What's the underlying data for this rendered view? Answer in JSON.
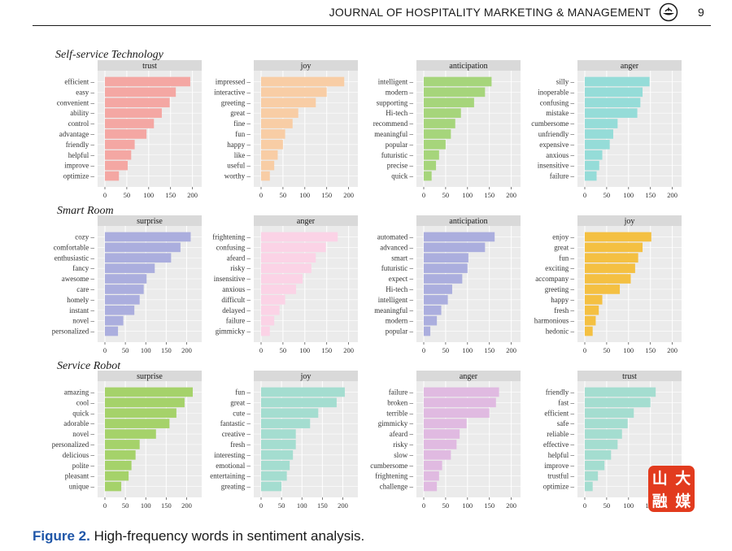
{
  "header": {
    "journal": "JOURNAL OF HOSPITALITY MARKETING & MANAGEMENT",
    "page": "9"
  },
  "rows": [
    {
      "title": "Self-service Technology"
    },
    {
      "title": "Smart Room"
    },
    {
      "title": "Service Robot"
    }
  ],
  "caption": {
    "label": "Figure 2.",
    "text": "High-frequency words in sentiment analysis."
  },
  "watermark": {
    "text": "山大融媒"
  },
  "chart_data": [
    {
      "type": "bar",
      "orientation": "horizontal",
      "group": "Self-service Technology",
      "title": "trust",
      "color": "#f4a7a3",
      "categories": [
        "efficient",
        "easy",
        "convenient",
        "ability",
        "control",
        "advantage",
        "friendly",
        "helpful",
        "improve",
        "optimize"
      ],
      "values": [
        195,
        162,
        148,
        130,
        112,
        95,
        68,
        60,
        52,
        32
      ],
      "xlim": [
        0,
        210
      ],
      "xticks": [
        0,
        50,
        100,
        150,
        200
      ]
    },
    {
      "type": "bar",
      "orientation": "horizontal",
      "group": "Self-service Technology",
      "title": "joy",
      "color": "#f8cda5",
      "categories": [
        "impressed",
        "interactive",
        "greeting",
        "great",
        "fine",
        "fun",
        "happy",
        "like",
        "useful",
        "worthy"
      ],
      "values": [
        190,
        150,
        125,
        85,
        72,
        55,
        50,
        38,
        30,
        20
      ],
      "xlim": [
        0,
        210
      ],
      "xticks": [
        0,
        50,
        100,
        150,
        200
      ]
    },
    {
      "type": "bar",
      "orientation": "horizontal",
      "group": "Self-service Technology",
      "title": "anticipation",
      "color": "#a6d57b",
      "categories": [
        "intelligent",
        "modern",
        "supporting",
        "Hi-tech",
        "recommend",
        "meaningful",
        "popular",
        "futuristic",
        "precise",
        "quick"
      ],
      "values": [
        155,
        140,
        115,
        85,
        72,
        62,
        50,
        35,
        28,
        18
      ],
      "xlim": [
        0,
        210
      ],
      "xticks": [
        0,
        50,
        100,
        150,
        200
      ]
    },
    {
      "type": "bar",
      "orientation": "horizontal",
      "group": "Self-service Technology",
      "title": "anger",
      "color": "#95dcd8",
      "categories": [
        "silly",
        "inoperable",
        "confusing",
        "mistake",
        "cumbersome",
        "unfriendly",
        "expensive",
        "anxious",
        "insensitive",
        "failure"
      ],
      "values": [
        148,
        132,
        127,
        120,
        75,
        65,
        57,
        40,
        33,
        27
      ],
      "xlim": [
        0,
        210
      ],
      "xticks": [
        0,
        50,
        100,
        150,
        200
      ]
    },
    {
      "type": "bar",
      "orientation": "horizontal",
      "group": "Smart Room",
      "title": "surprise",
      "color": "#abaede",
      "categories": [
        "cozy",
        "comfortable",
        "enthusiastic",
        "fancy",
        "awesome",
        "care",
        "homely",
        "instant",
        "novel",
        "personalized"
      ],
      "values": [
        210,
        185,
        162,
        122,
        102,
        95,
        85,
        72,
        45,
        32
      ],
      "xlim": [
        0,
        225
      ],
      "xticks": [
        0,
        50,
        100,
        150,
        200
      ]
    },
    {
      "type": "bar",
      "orientation": "horizontal",
      "group": "Smart Room",
      "title": "anger",
      "color": "#fbd3e6",
      "categories": [
        "frightening",
        "confusing",
        "afeard",
        "risky",
        "insensitive",
        "anxious",
        "difficult",
        "delayed",
        "failure",
        "gimmicky"
      ],
      "values": [
        175,
        148,
        125,
        115,
        95,
        80,
        55,
        42,
        30,
        20
      ],
      "xlim": [
        0,
        210
      ],
      "xticks": [
        0,
        50,
        100,
        150,
        200
      ]
    },
    {
      "type": "bar",
      "orientation": "horizontal",
      "group": "Smart Room",
      "title": "anticipation",
      "color": "#abaede",
      "categories": [
        "automated",
        "advanced",
        "smart",
        "futuristic",
        "expect",
        "Hi-tech",
        "intelligent",
        "meaningful",
        "modern",
        "popular"
      ],
      "values": [
        162,
        140,
        102,
        100,
        88,
        65,
        55,
        40,
        30,
        15
      ],
      "xlim": [
        0,
        210
      ],
      "xticks": [
        0,
        50,
        100,
        150,
        200
      ]
    },
    {
      "type": "bar",
      "orientation": "horizontal",
      "group": "Smart Room",
      "title": "joy",
      "color": "#f4c042",
      "categories": [
        "enjoy",
        "great",
        "fun",
        "exciting",
        "accompany",
        "greeting",
        "happy",
        "fresh",
        "harmonious",
        "hedonic"
      ],
      "values": [
        152,
        132,
        122,
        115,
        105,
        80,
        40,
        32,
        25,
        18
      ],
      "xlim": [
        0,
        210
      ],
      "xticks": [
        0,
        50,
        100,
        150,
        200
      ]
    },
    {
      "type": "bar",
      "orientation": "horizontal",
      "group": "Service Robot",
      "title": "surprise",
      "color": "#a5d26a",
      "categories": [
        "amazing",
        "cool",
        "quick",
        "adorable",
        "novel",
        "personalized",
        "delicious",
        "polite",
        "pleasant",
        "unique"
      ],
      "values": [
        215,
        195,
        175,
        158,
        125,
        85,
        75,
        65,
        58,
        40
      ],
      "xlim": [
        0,
        225
      ],
      "xticks": [
        0,
        50,
        100,
        150,
        200
      ]
    },
    {
      "type": "bar",
      "orientation": "horizontal",
      "group": "Service Robot",
      "title": "joy",
      "color": "#a4ddd0",
      "categories": [
        "fun",
        "great",
        "cute",
        "fantastic",
        "creative",
        "fresh",
        "interesting",
        "emotional",
        "entertaining",
        "greating"
      ],
      "values": [
        205,
        185,
        140,
        120,
        85,
        85,
        78,
        70,
        63,
        50
      ],
      "xlim": [
        0,
        225
      ],
      "xticks": [
        0,
        50,
        100,
        150,
        200
      ]
    },
    {
      "type": "bar",
      "orientation": "horizontal",
      "group": "Service Robot",
      "title": "anger",
      "color": "#e0bae1",
      "categories": [
        "failure",
        "broken",
        "terrible",
        "gimmicky",
        "afeard",
        "risky",
        "slow",
        "cumbersome",
        "frightening",
        "challenge"
      ],
      "values": [
        172,
        165,
        150,
        98,
        82,
        75,
        62,
        42,
        35,
        30
      ],
      "xlim": [
        0,
        210
      ],
      "xticks": [
        0,
        50,
        100,
        150,
        200
      ]
    },
    {
      "type": "bar",
      "orientation": "horizontal",
      "group": "Service Robot",
      "title": "trust",
      "color": "#a4ddd0",
      "categories": [
        "friendly",
        "fast",
        "efficient",
        "safe",
        "reliable",
        "effective",
        "helpful",
        "improve",
        "trustful",
        "optimize"
      ],
      "values": [
        162,
        150,
        112,
        98,
        85,
        75,
        60,
        45,
        30,
        18
      ],
      "xlim": [
        0,
        210
      ],
      "xticks": [
        0,
        50,
        100,
        150,
        200
      ]
    }
  ]
}
